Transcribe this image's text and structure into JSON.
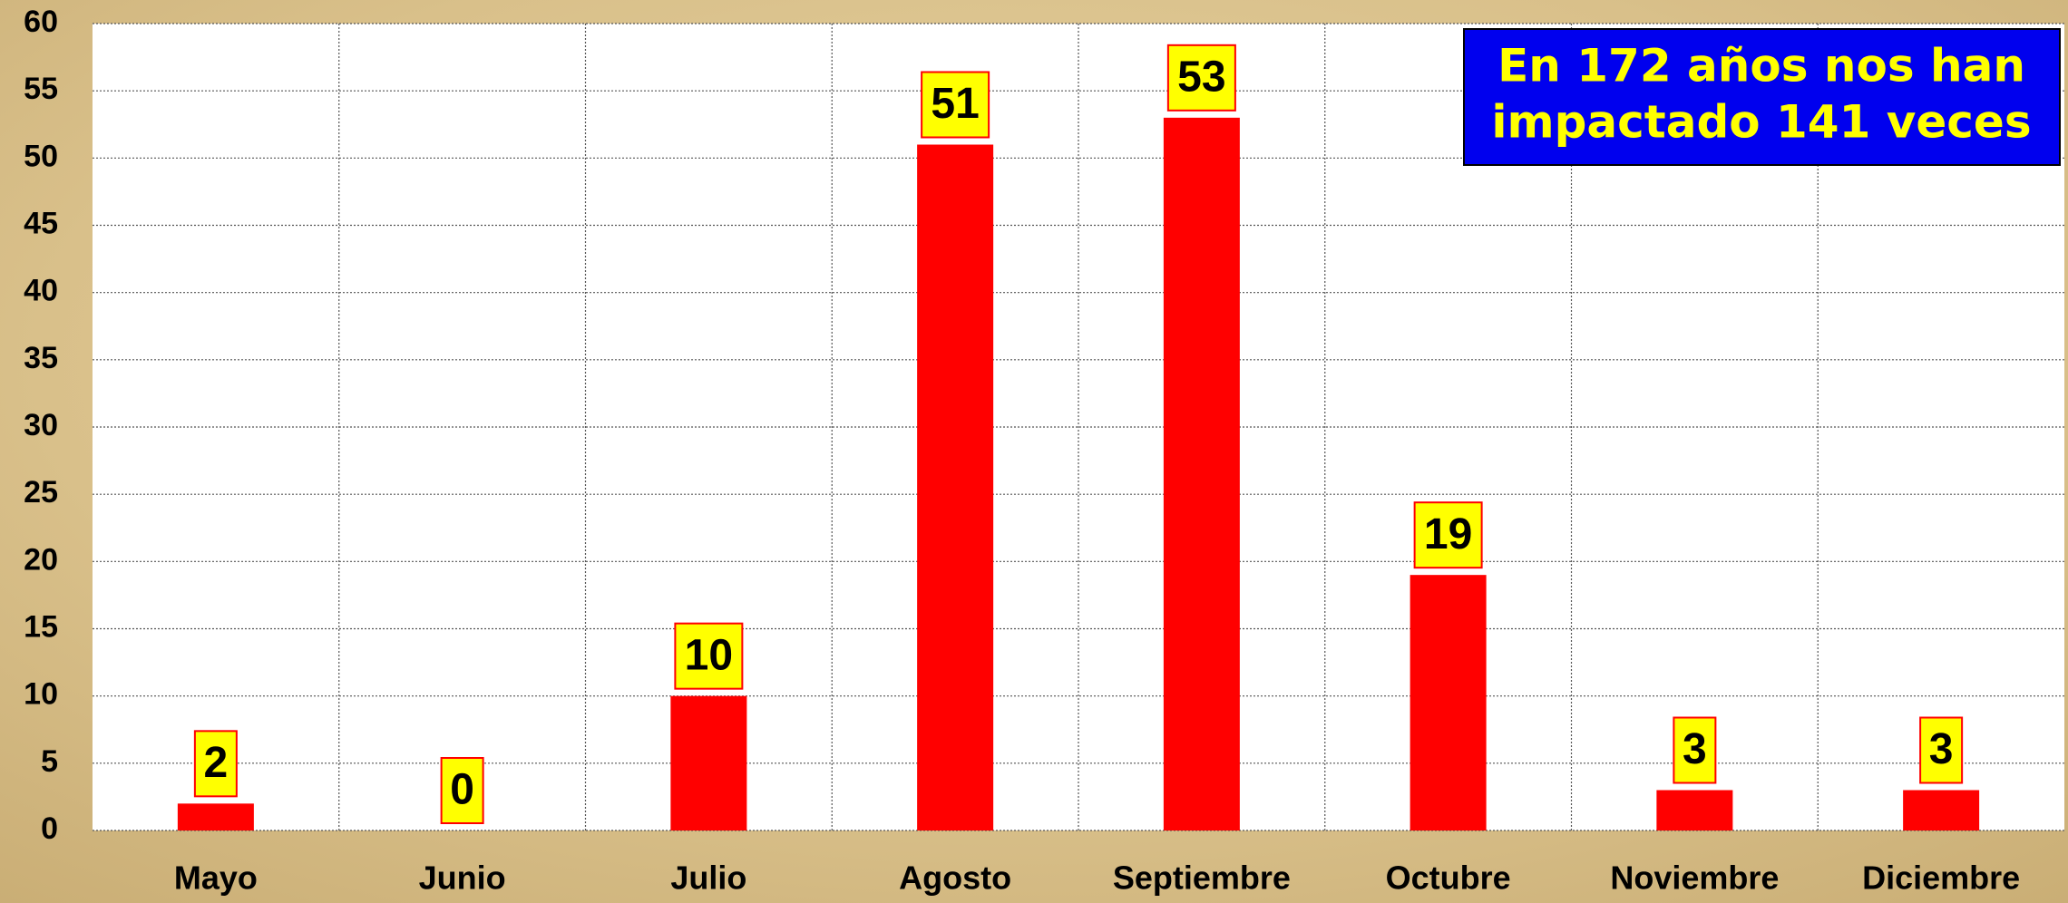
{
  "chart_data": {
    "type": "bar",
    "categories": [
      "Mayo",
      "Junio",
      "Julio",
      "Agosto",
      "Septiembre",
      "Octubre",
      "Noviembre",
      "Diciembre"
    ],
    "values": [
      2,
      0,
      10,
      51,
      53,
      19,
      3,
      3
    ],
    "color": "#ff0000",
    "ylim": [
      0,
      60
    ],
    "yticks": [
      0,
      5,
      10,
      15,
      20,
      25,
      30,
      35,
      40,
      45,
      50,
      55,
      60
    ],
    "grid": true,
    "annotation": [
      "En 172 años nos  han",
      "impactado 141 veces"
    ]
  }
}
